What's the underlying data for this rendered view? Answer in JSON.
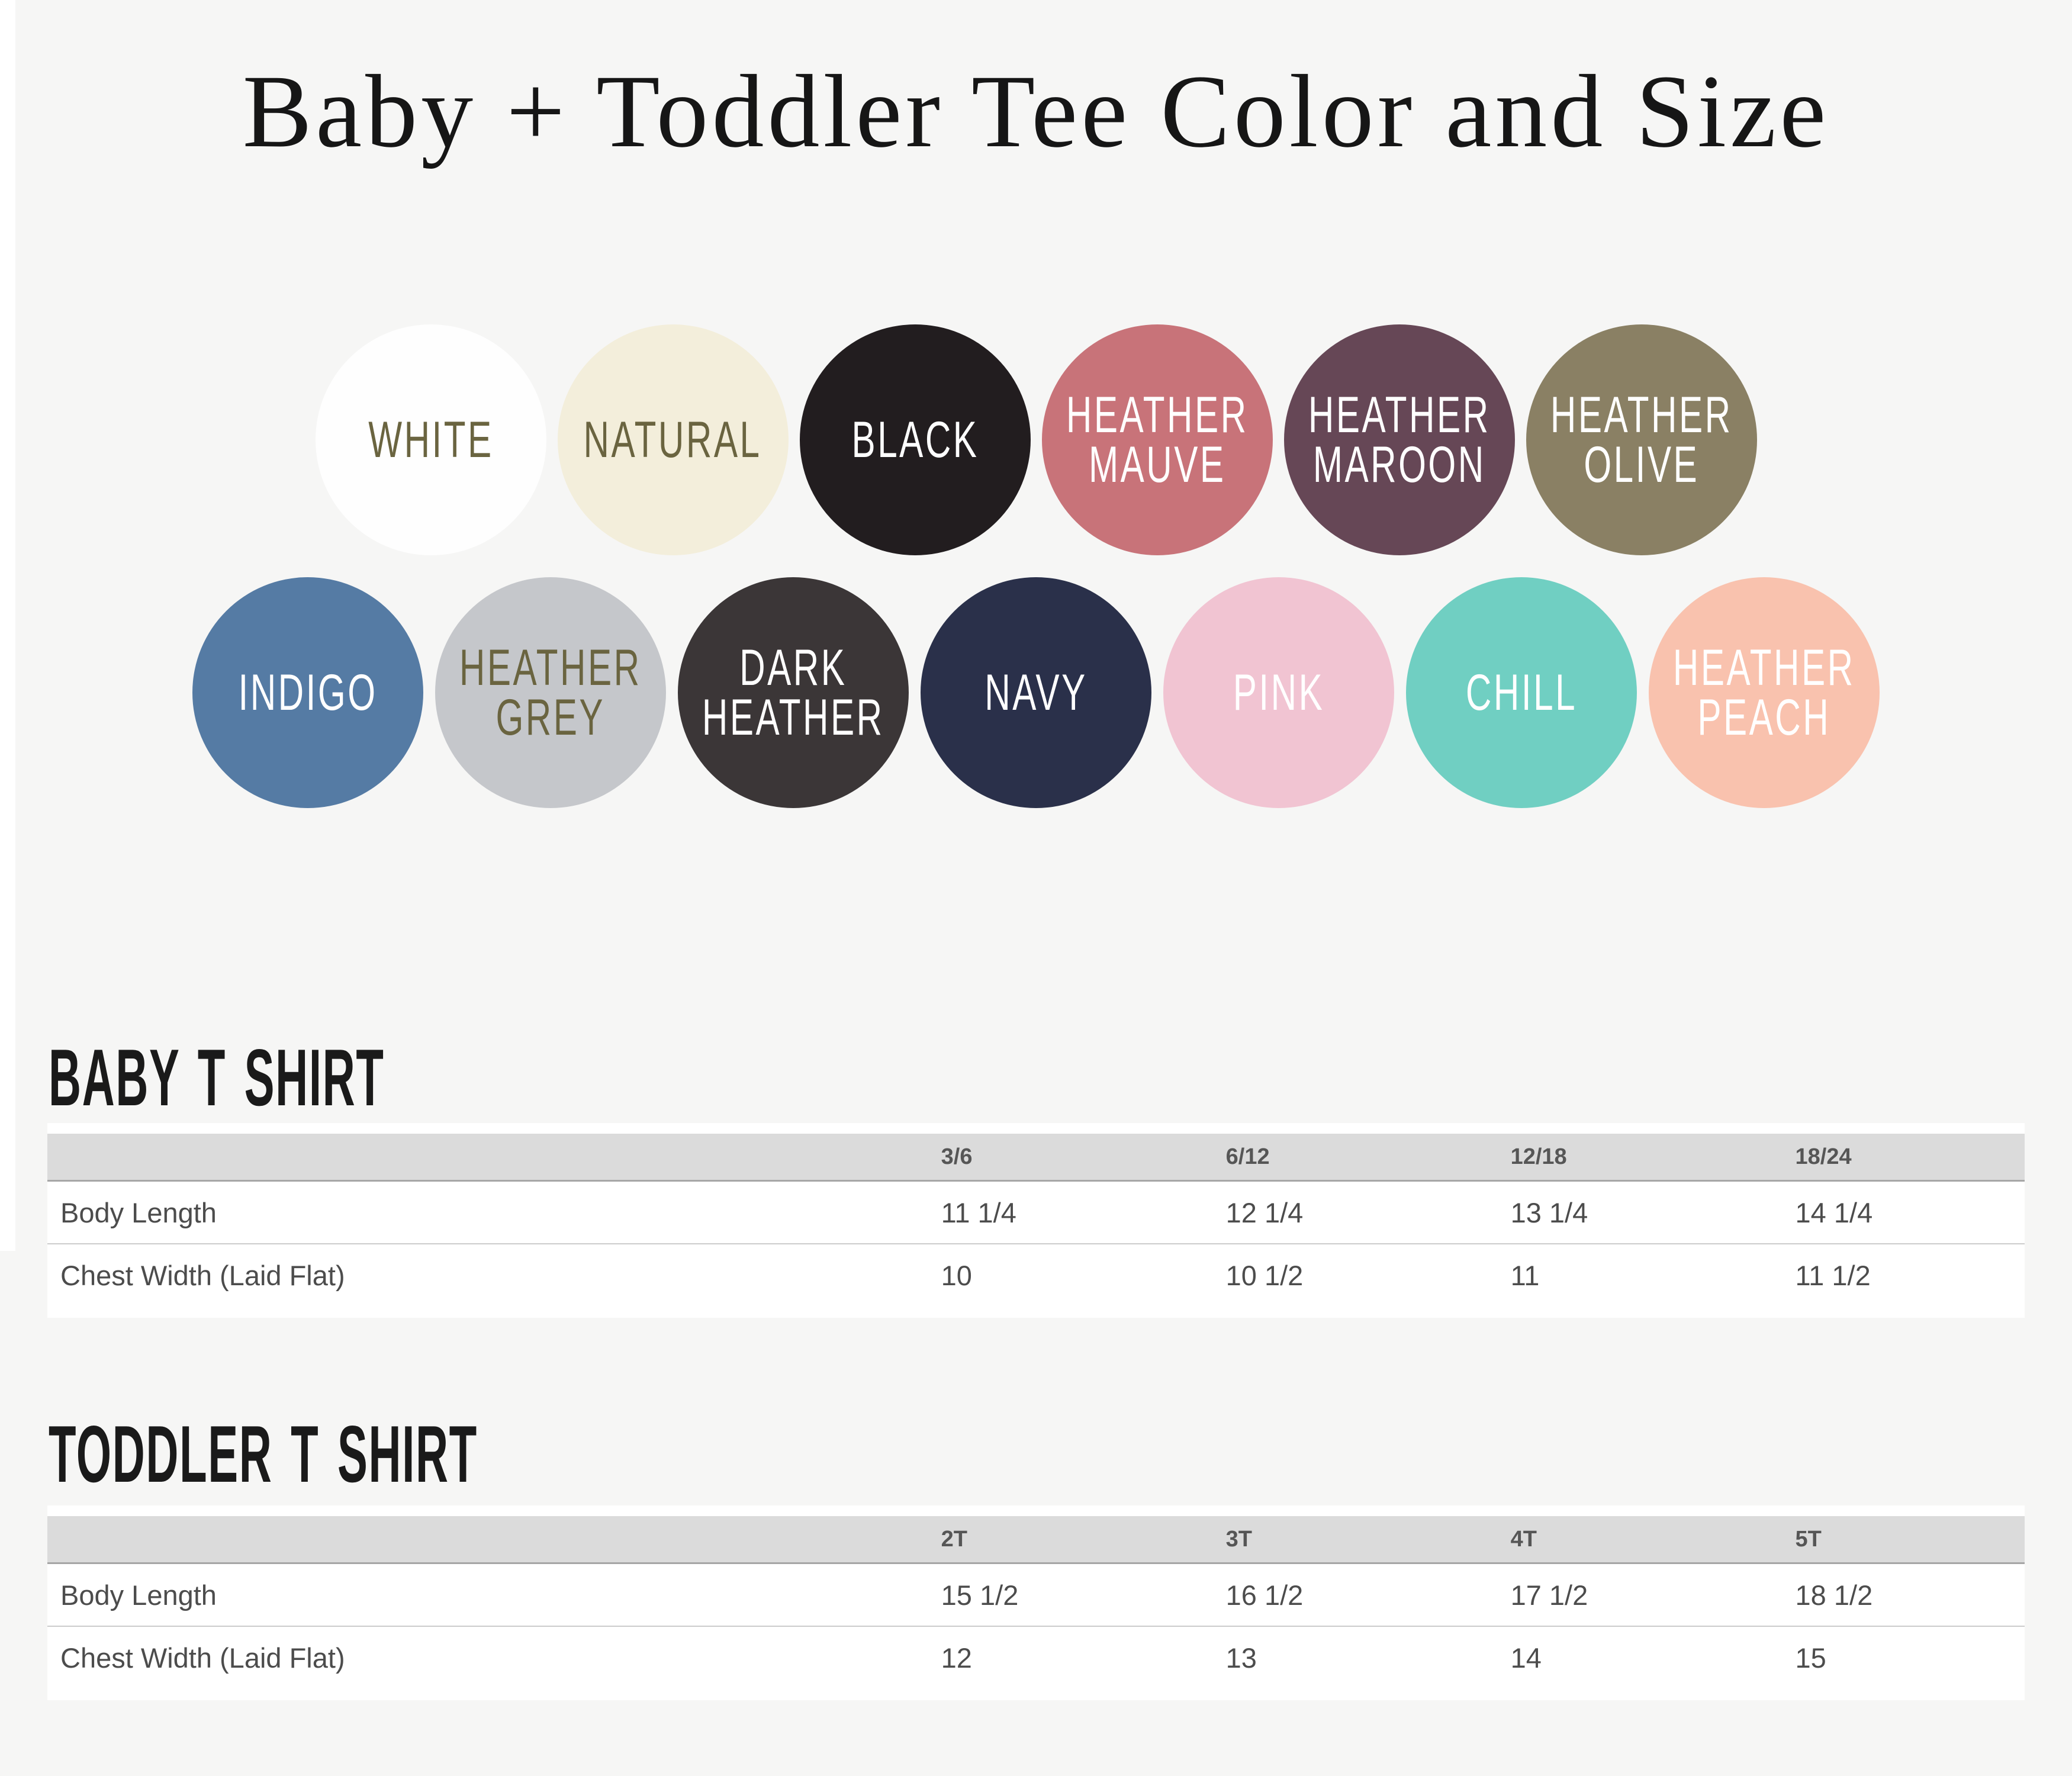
{
  "page": {
    "title": "Baby + Toddler Tee Color and Size",
    "background": "#f6f6f5"
  },
  "swatches": {
    "olive_text": "#6a6440",
    "row1": [
      {
        "label": "WHITE",
        "color": "#fefefe",
        "text_color": "#6a6440"
      },
      {
        "label": "NATURAL",
        "color": "#f3eedb",
        "text_color": "#6a6440"
      },
      {
        "label": "BLACK",
        "color": "#221d1f",
        "text_color": "#ffffff"
      },
      {
        "label": "HEATHER MAUVE",
        "color": "#c87379",
        "text_color": "#ffffff"
      },
      {
        "label": "HEATHER MAROON",
        "color": "#664756",
        "text_color": "#ffffff"
      },
      {
        "label": "HEATHER OLIVE",
        "color": "#8a8064",
        "text_color": "#ffffff"
      }
    ],
    "row2": [
      {
        "label": "INDIGO",
        "color": "#557ba4",
        "text_color": "#ffffff"
      },
      {
        "label": "HEATHER GREY",
        "color": "#c5c7cb",
        "text_color": "#6a6440"
      },
      {
        "label": "DARK HEATHER",
        "color": "#3b3637",
        "text_color": "#ffffff"
      },
      {
        "label": "NAVY",
        "color": "#2a304a",
        "text_color": "#ffffff"
      },
      {
        "label": "PINK",
        "color": "#f1c4d2",
        "text_color": "#ffffff"
      },
      {
        "label": "CHILL",
        "color": "#70cfc2",
        "text_color": "#ffffff"
      },
      {
        "label": "HEATHER PEACH",
        "color": "#f9c2ae",
        "text_color": "#ffffff"
      }
    ]
  },
  "baby": {
    "heading": "BABY T SHIRT",
    "columns": [
      "3/6",
      "6/12",
      "12/18",
      "18/24"
    ],
    "rows": [
      {
        "label": "Body Length",
        "values": [
          "11 1/4",
          "12 1/4",
          "13 1/4",
          "14 1/4"
        ]
      },
      {
        "label": "Chest Width (Laid Flat)",
        "values": [
          "10",
          "10 1/2",
          "11",
          "11 1/2"
        ]
      }
    ]
  },
  "toddler": {
    "heading": "TODDLER T SHIRT",
    "columns": [
      "2T",
      "3T",
      "4T",
      "5T"
    ],
    "rows": [
      {
        "label": "Body Length",
        "values": [
          "15 1/2",
          "16 1/2",
          "17 1/2",
          "18 1/2"
        ]
      },
      {
        "label": "Chest Width (Laid Flat)",
        "values": [
          "12",
          "13",
          "14",
          "15"
        ]
      }
    ]
  }
}
